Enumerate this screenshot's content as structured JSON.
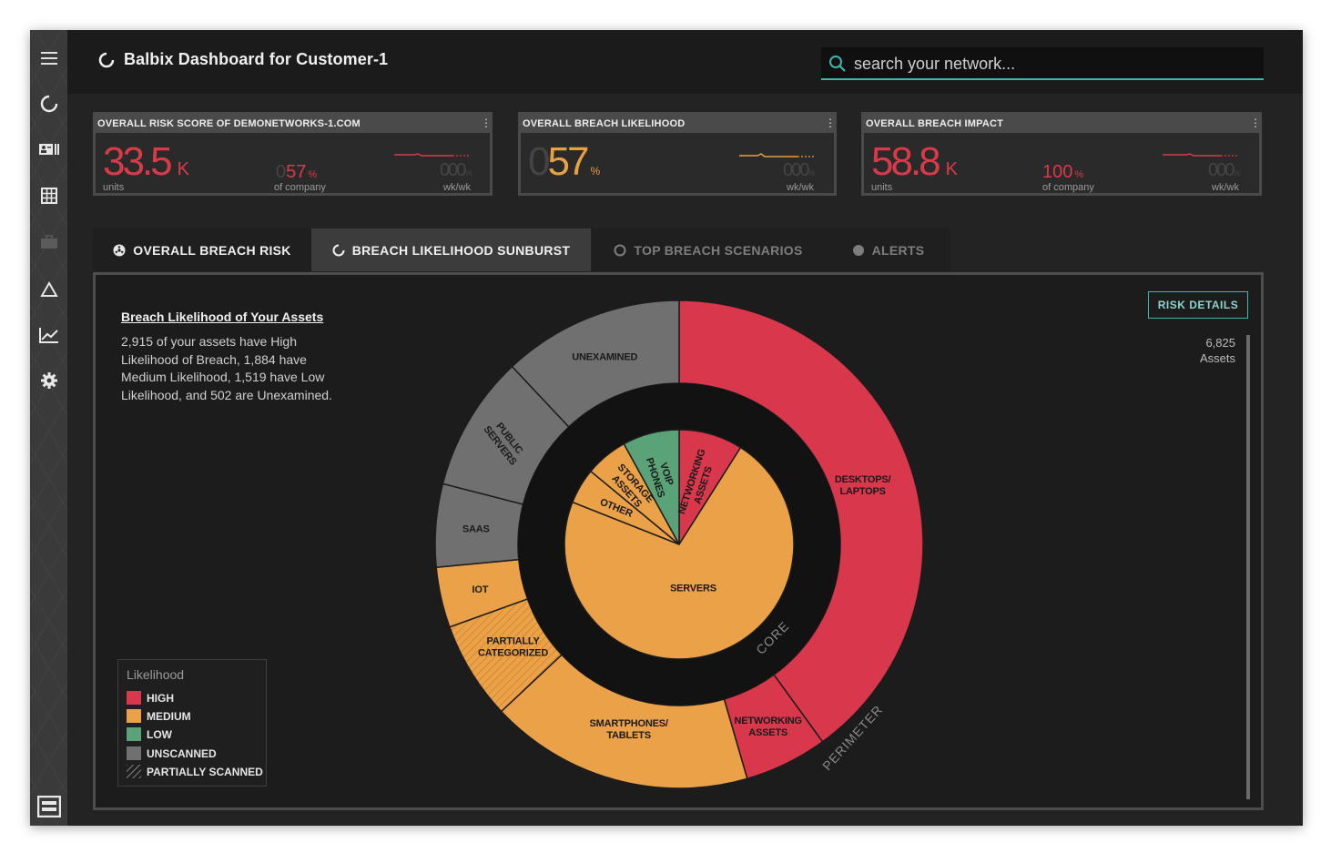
{
  "app": {
    "title": "Balbix Dashboard for Customer-1"
  },
  "search": {
    "placeholder": "search your network..."
  },
  "sidebar": {
    "icons": [
      "menu-icon",
      "refresh-icon",
      "id-card-icon",
      "grid-icon",
      "briefcase-icon",
      "triangle-icon",
      "trend-chart-icon",
      "gear-icon",
      "layout-icon"
    ]
  },
  "kpis": [
    {
      "title": "OVERALL RISK SCORE OF DEMONETWORKS-1.COM",
      "value": "33.5",
      "unit": "K",
      "value_sub": "units",
      "pct": "57",
      "pct_unit": "%",
      "pct_sub": "of company",
      "wk_value": "000",
      "wk_unit": "%",
      "wk_label": "wk/wk",
      "color": "#d93a4a"
    },
    {
      "title": "OVERALL BREACH LIKELIHOOD",
      "value_ghost": "0",
      "value": "57",
      "unit": "%",
      "wk_value": "000",
      "wk_unit": "%",
      "wk_label": "wk/wk",
      "color": "#e8a040"
    },
    {
      "title": "OVERALL BREACH IMPACT",
      "value": "58.8",
      "unit": "K",
      "value_sub": "units",
      "pct": "100",
      "pct_unit": "%",
      "pct_sub": "of company",
      "wk_value": "000",
      "wk_unit": "%",
      "wk_label": "wk/wk",
      "color": "#d93a4a"
    }
  ],
  "tabs": [
    {
      "label": "OVERALL BREACH RISK",
      "icon": "radiation-icon"
    },
    {
      "label": "BREACH LIKELIHOOD SUNBURST",
      "icon": "refresh-icon"
    },
    {
      "label": "TOP BREACH SCENARIOS",
      "icon": "circle-outline-icon"
    },
    {
      "label": "ALERTS",
      "icon": "circle-filled-icon"
    }
  ],
  "panel": {
    "heading": "Breach Likelihood of Your Assets",
    "description": "2,915 of your assets have High Likelihood of Breach, 1,884 have Medium Likelihood, 1,519 have Low Likelihood, and 502 are Unexamined.",
    "risk_button": "RISK DETAILS",
    "asset_count": "6,825",
    "asset_label": "Assets"
  },
  "colors": {
    "high": "#d9374b",
    "medium": "#eba147",
    "low": "#5aa379",
    "unscanned": "#707070",
    "accent": "#3fb6ad"
  },
  "chart_data": {
    "type": "sunburst",
    "ring_labels": [
      "CORE",
      "PERIMETER"
    ],
    "core": [
      {
        "label": "NETWORKING ASSETS",
        "likelihood": "HIGH",
        "share": 0.09
      },
      {
        "label": "SERVERS",
        "likelihood": "MEDIUM",
        "share": 0.72
      },
      {
        "label": "OTHER",
        "likelihood": "MEDIUM",
        "share": 0.05
      },
      {
        "label": "STORAGE ASSETS",
        "likelihood": "MEDIUM",
        "share": 0.06
      },
      {
        "label": "VOIP PHONES",
        "likelihood": "LOW",
        "share": 0.08
      }
    ],
    "perimeter": [
      {
        "label": "DESKTOPS/ LAPTOPS",
        "likelihood": "HIGH",
        "share": 0.4
      },
      {
        "label": "NETWORKING ASSETS",
        "likelihood": "HIGH",
        "share": 0.055
      },
      {
        "label": "SMARTPHONES/ TABLETS",
        "likelihood": "MEDIUM",
        "share": 0.175
      },
      {
        "label": "PARTIALLY CATEGORIZED",
        "likelihood": "MEDIUM",
        "partially_scanned": true,
        "share": 0.065
      },
      {
        "label": "IOT",
        "likelihood": "MEDIUM",
        "share": 0.04
      },
      {
        "label": "SAAS",
        "likelihood": "UNSCANNED",
        "share": 0.055
      },
      {
        "label": "PUBLIC SERVERS",
        "likelihood": "UNSCANNED",
        "share": 0.09
      },
      {
        "label": "UNEXAMINED",
        "likelihood": "UNSCANNED",
        "share": 0.12
      }
    ],
    "legend": {
      "title": "Likelihood",
      "items": [
        {
          "label": "HIGH",
          "color": "#d9374b"
        },
        {
          "label": "MEDIUM",
          "color": "#eba147"
        },
        {
          "label": "LOW",
          "color": "#5aa379"
        },
        {
          "label": "UNSCANNED",
          "color": "#707070"
        },
        {
          "label": "PARTIALLY SCANNED",
          "pattern": "hatch"
        }
      ]
    }
  }
}
